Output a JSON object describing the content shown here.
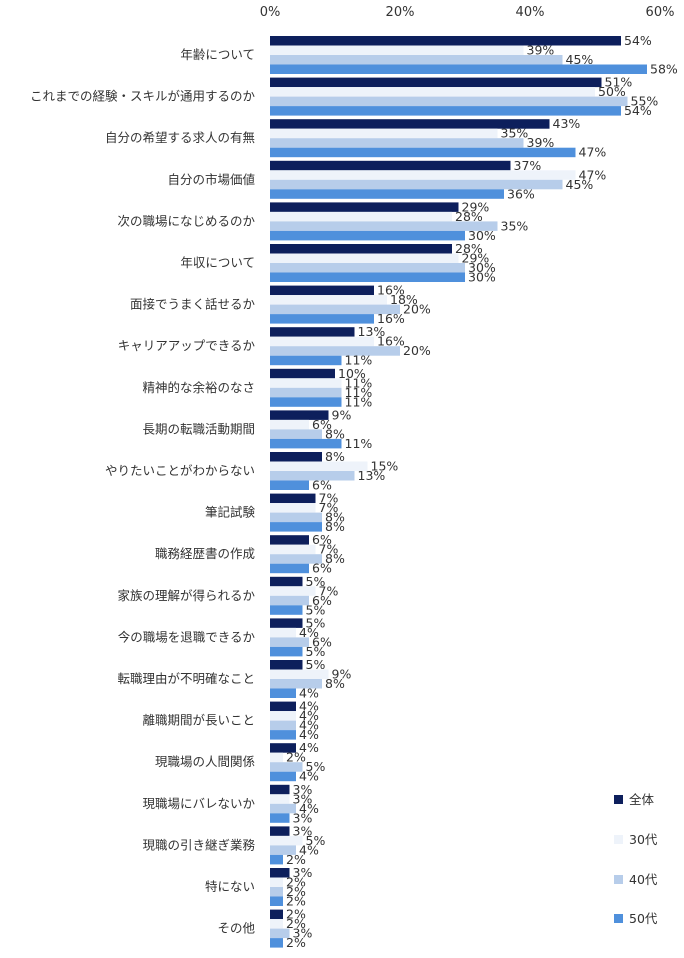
{
  "chart_data": {
    "type": "bar",
    "orientation": "horizontal",
    "xlim": [
      0,
      60
    ],
    "ticks": [
      0,
      20,
      40,
      60
    ],
    "tick_suffix": "%",
    "grid": false,
    "legend_position": "right",
    "categories": [
      "年齢について",
      "これまでの経験・スキルが通用するのか",
      "自分の希望する求人の有無",
      "自分の市場価値",
      "次の職場になじめるのか",
      "年収について",
      "面接でうまく話せるか",
      "キャリアアップできるか",
      "精神的な余裕のなさ",
      "長期の転職活動期間",
      "やりたいことがわからない",
      "筆記試験",
      "職務経歴書の作成",
      "家族の理解が得られるか",
      "今の職場を退職できるか",
      "転職理由が不明確なこと",
      "離職期間が長いこと",
      "現職場の人間関係",
      "現職場にバレないか",
      "現職の引き継ぎ業務",
      "特にない",
      "その他"
    ],
    "series": [
      {
        "name": "全体",
        "color": "#0d1f5c",
        "values": [
          54,
          51,
          43,
          37,
          29,
          28,
          16,
          13,
          10,
          9,
          8,
          7,
          6,
          5,
          5,
          5,
          4,
          4,
          3,
          3,
          3,
          2
        ]
      },
      {
        "name": "30代",
        "color": "#eef3fa",
        "values": [
          39,
          50,
          35,
          47,
          28,
          29,
          18,
          16,
          11,
          6,
          15,
          7,
          7,
          7,
          4,
          9,
          4,
          2,
          3,
          5,
          2,
          2
        ]
      },
      {
        "name": "40代",
        "color": "#b7cdea",
        "values": [
          45,
          55,
          39,
          45,
          35,
          30,
          20,
          20,
          11,
          8,
          13,
          8,
          8,
          6,
          6,
          8,
          4,
          5,
          4,
          4,
          2,
          3
        ]
      },
      {
        "name": "50代",
        "color": "#4f90dc",
        "values": [
          58,
          54,
          47,
          36,
          30,
          30,
          16,
          11,
          11,
          11,
          6,
          8,
          6,
          5,
          5,
          4,
          4,
          4,
          3,
          2,
          2,
          2
        ]
      }
    ]
  }
}
